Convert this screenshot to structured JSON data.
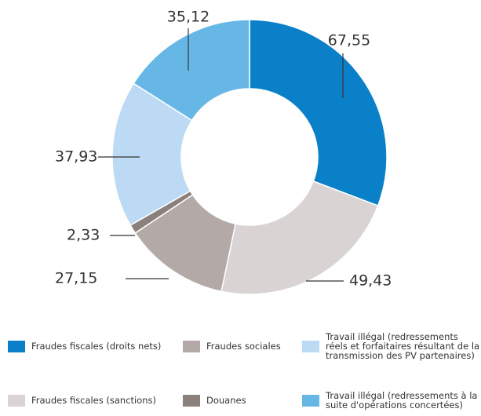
{
  "chart_data": {
    "type": "donut",
    "categories": [
      "Fraudes fiscales (droits nets)",
      "Fraudes fiscales (sanctions)",
      "Fraudes sociales",
      "Douanes",
      "Travail illégal (redressements réels et forfaitaires résultant de la transmission des PV partenaires)",
      "Travail illégal (redressements à la suite d'opérations concertées)"
    ],
    "values": [
      67.55,
      49.43,
      27.15,
      2.33,
      37.93,
      35.12
    ],
    "value_labels": [
      "67,55",
      "49,43",
      "27,15",
      "2,33",
      "37,93",
      "35,12"
    ],
    "colors": [
      "#0a80c9",
      "#d9d4d3",
      "#b3aaa7",
      "#8c807d",
      "#bcdaf4",
      "#66b7e6"
    ]
  }
}
